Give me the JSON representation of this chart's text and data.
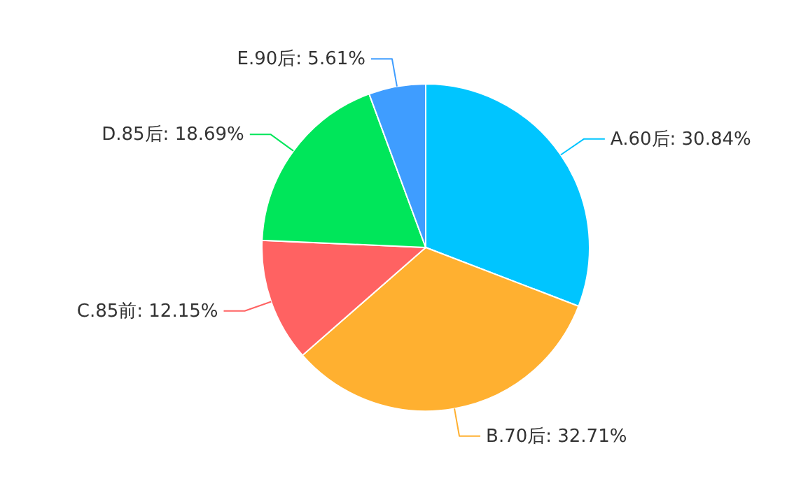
{
  "chart_data": {
    "type": "pie",
    "categories": [
      "A.60后",
      "B.70后",
      "C.85前",
      "D.85后",
      "E.90后"
    ],
    "values": [
      30.84,
      32.71,
      12.15,
      18.69,
      5.61
    ],
    "value_labels": [
      "30.84%",
      "32.71%",
      "12.15%",
      "18.69%",
      "5.61%"
    ],
    "colors": [
      "#00c5ff",
      "#ffb030",
      "#ff6262",
      "#00e65a",
      "#3f9dff"
    ]
  }
}
